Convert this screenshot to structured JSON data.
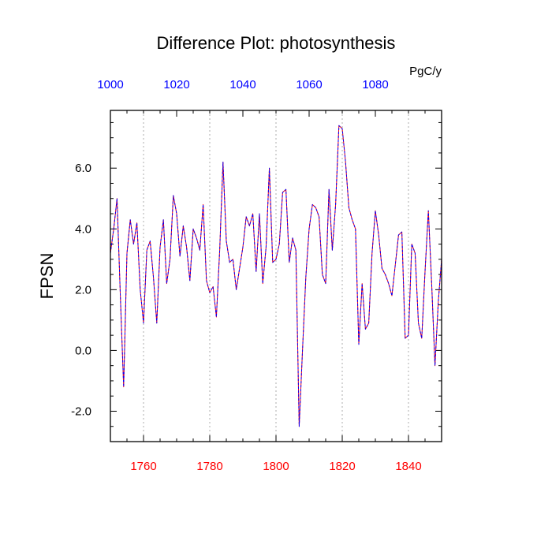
{
  "chart_data": {
    "type": "line",
    "title": "Difference Plot: photosynthesis",
    "ylabel": "FPSN",
    "units": "PgC/y",
    "xlim": [
      1750,
      1850
    ],
    "ylim": [
      -3.0,
      7.9
    ],
    "top_axis": {
      "ticks": [
        1000,
        1020,
        1040,
        1060,
        1080
      ],
      "tick_labels": [
        "1000",
        "1020",
        "1040",
        "1060",
        "1080"
      ],
      "color": "#0000ff"
    },
    "bottom_axis": {
      "ticks": [
        1760,
        1780,
        1800,
        1820,
        1840
      ],
      "tick_labels": [
        "1760",
        "1780",
        "1800",
        "1820",
        "1840"
      ],
      "color": "#ff0000"
    },
    "y_ticks": [
      -2.0,
      0.0,
      2.0,
      4.0,
      6.0
    ],
    "y_tick_labels": [
      "-2.0",
      "0.0",
      "2.0",
      "4.0",
      "6.0"
    ],
    "vertical_gridlines_at": [
      1760,
      1780,
      1800,
      1820,
      1840
    ],
    "series": [
      {
        "name": "bottom-axis series",
        "color": "#ff0000",
        "x": [
          1750,
          1751,
          1752,
          1753,
          1754,
          1755,
          1756,
          1757,
          1758,
          1759,
          1760,
          1761,
          1762,
          1763,
          1764,
          1765,
          1766,
          1767,
          1768,
          1769,
          1770,
          1771,
          1772,
          1773,
          1774,
          1775,
          1776,
          1777,
          1778,
          1779,
          1780,
          1781,
          1782,
          1783,
          1784,
          1785,
          1786,
          1787,
          1788,
          1789,
          1790,
          1791,
          1792,
          1793,
          1794,
          1795,
          1796,
          1797,
          1798,
          1799,
          1800,
          1801,
          1802,
          1803,
          1804,
          1805,
          1806,
          1807,
          1808,
          1809,
          1810,
          1811,
          1812,
          1813,
          1814,
          1815,
          1816,
          1817,
          1818,
          1819,
          1820,
          1821,
          1822,
          1823,
          1824,
          1825,
          1826,
          1827,
          1828,
          1829,
          1830,
          1831,
          1832,
          1833,
          1834,
          1835,
          1836,
          1837,
          1838,
          1839,
          1840,
          1841,
          1842,
          1843,
          1844,
          1845,
          1846,
          1847,
          1848,
          1849,
          1850
        ],
        "values": [
          3.2,
          4.0,
          5.0,
          1.8,
          -1.2,
          3.2,
          4.3,
          3.5,
          4.2,
          2.0,
          0.9,
          3.3,
          3.6,
          2.4,
          0.9,
          3.4,
          4.3,
          2.2,
          3.0,
          5.1,
          4.5,
          3.1,
          4.1,
          3.4,
          2.3,
          4.0,
          3.7,
          3.3,
          4.8,
          2.3,
          1.9,
          2.1,
          1.1,
          3.3,
          6.2,
          3.6,
          2.9,
          3.0,
          2.0,
          2.7,
          3.4,
          4.4,
          4.1,
          4.5,
          2.6,
          4.5,
          2.2,
          3.4,
          6.0,
          2.9,
          3.0,
          3.5,
          5.2,
          5.3,
          2.9,
          3.7,
          3.3,
          -2.5,
          0.0,
          2.4,
          4.0,
          4.8,
          4.7,
          4.4,
          2.5,
          2.2,
          5.3,
          3.3,
          4.8,
          7.4,
          7.3,
          6.2,
          4.7,
          4.3,
          4.0,
          0.2,
          2.2,
          0.7,
          0.9,
          3.2,
          4.6,
          3.8,
          2.7,
          2.5,
          2.2,
          1.8,
          2.8,
          3.8,
          3.9,
          0.4,
          0.5,
          3.5,
          3.2,
          0.9,
          0.4,
          2.6,
          4.6,
          2.2,
          -0.5,
          1.6,
          3.0
        ]
      },
      {
        "name": "top-axis series",
        "color": "#0000ff",
        "dashed": true
      }
    ]
  }
}
